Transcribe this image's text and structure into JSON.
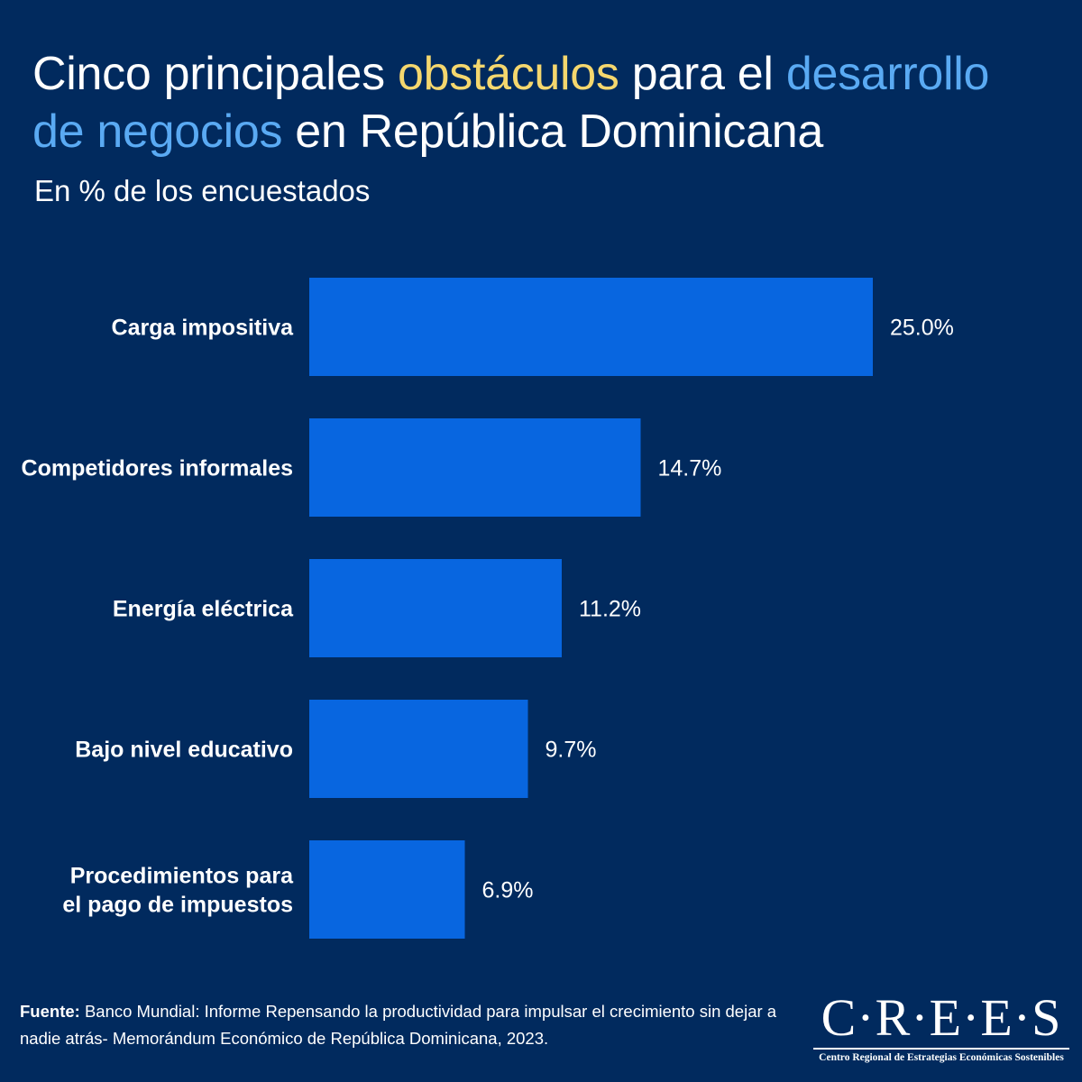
{
  "title": {
    "part1": "Cinco principales ",
    "highlight1": "obstáculos",
    "part2": " para el ",
    "highlight2": "desarrollo de negocios",
    "part3": " en República Dominicana"
  },
  "subtitle": "En % de los encuestados",
  "colors": {
    "background": "#012a5e",
    "bar": "#0866e0",
    "highlight_yellow": "#f5d76e",
    "highlight_blue": "#5aaaf3"
  },
  "chart_data": {
    "type": "bar",
    "orientation": "horizontal",
    "categories": [
      [
        "Carga impositiva"
      ],
      [
        "Competidores informales"
      ],
      [
        "Energía eléctrica"
      ],
      [
        "Bajo nivel educativo"
      ],
      [
        "Procedimientos para",
        "el pago de impuestos"
      ]
    ],
    "values": [
      25.0,
      14.7,
      11.2,
      9.7,
      6.9
    ],
    "value_labels": [
      "25.0%",
      "14.7%",
      "11.2%",
      "9.7%",
      "6.9%"
    ],
    "unit": "%",
    "grid": false,
    "legend": "none"
  },
  "source": {
    "label": "Fuente:",
    "text": " Banco Mundial: Informe Repensando la productividad para impulsar el crecimiento sin dejar a nadie atrás- Memorándum Económico de República Dominicana, 2023."
  },
  "logo": {
    "name": "C·R·E·E·S",
    "tagline": "Centro Regional de Estrategias Económicas Sostenibles"
  }
}
